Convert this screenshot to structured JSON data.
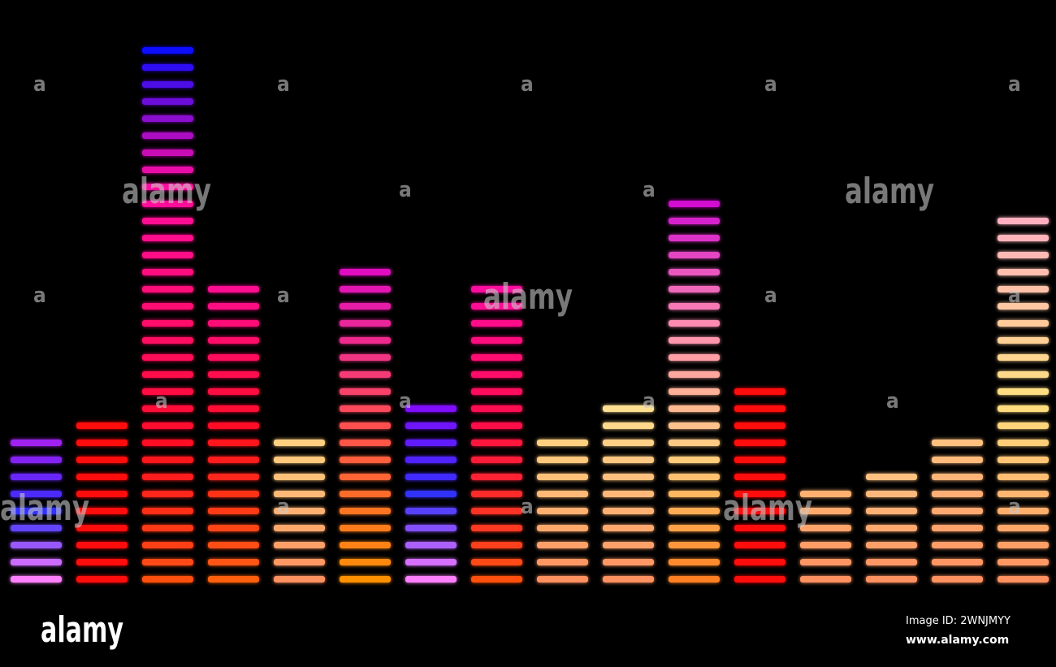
{
  "watermark": {
    "logo": "alamy",
    "mark": "a"
  },
  "footer": {
    "logo": "alamy",
    "image_id": "Image ID: 2WNJMYY",
    "url": "www.alamy.com"
  }
}
